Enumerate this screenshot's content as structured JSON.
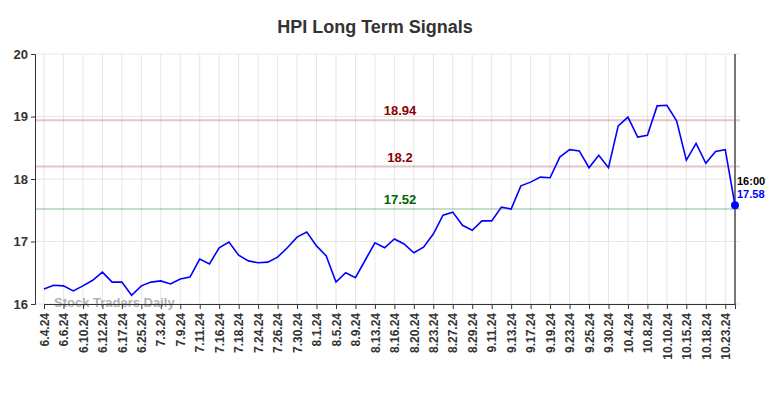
{
  "chart_data": {
    "type": "line",
    "title": "HPI Long Term Signals",
    "watermark": "Stock Traders Daily",
    "categories": [
      "6.4.24",
      null,
      "6.6.24",
      null,
      "6.10.24",
      null,
      "6.12.24",
      null,
      "6.17.24",
      null,
      "6.25.24",
      null,
      "7.3.24",
      null,
      "7.9.24",
      null,
      "7.11.24",
      null,
      "7.16.24",
      null,
      "7.18.24",
      null,
      "7.24.24",
      null,
      "7.26.24",
      null,
      "7.30.24",
      null,
      "8.1.24",
      null,
      "8.5.24",
      null,
      "8.9.24",
      null,
      "8.13.24",
      null,
      "8.16.24",
      null,
      "8.20.24",
      null,
      "8.23.24",
      null,
      "8.27.24",
      null,
      "8.29.24",
      null,
      "9.11.24",
      null,
      "9.13.24",
      null,
      "9.17.24",
      null,
      "9.19.24",
      null,
      "9.23.24",
      null,
      "9.25.24",
      null,
      "9.30.24",
      null,
      "10.4.24",
      null,
      "10.8.24",
      null,
      "10.10.24",
      null,
      "10.15.24",
      null,
      "10.18.24",
      null,
      "10.23.24",
      null
    ],
    "values": [
      16.24,
      16.3,
      16.29,
      16.21,
      16.29,
      16.38,
      16.51,
      16.35,
      16.35,
      16.14,
      16.29,
      16.35,
      16.37,
      16.32,
      16.4,
      16.43,
      16.72,
      16.64,
      16.9,
      16.99,
      16.78,
      16.69,
      16.66,
      16.67,
      16.75,
      16.9,
      17.07,
      17.15,
      16.93,
      16.77,
      16.35,
      16.5,
      16.42,
      16.7,
      16.98,
      16.9,
      17.04,
      16.96,
      16.82,
      16.91,
      17.12,
      17.42,
      17.47,
      17.26,
      17.18,
      17.33,
      17.33,
      17.55,
      17.52,
      17.89,
      17.95,
      18.03,
      18.02,
      18.35,
      18.47,
      18.45,
      18.18,
      18.38,
      18.18,
      18.85,
      18.99,
      18.67,
      18.7,
      19.17,
      19.18,
      18.93,
      18.3,
      18.57,
      18.25,
      18.44,
      18.47,
      17.58
    ],
    "color": "#0000ff",
    "ylim": [
      16,
      20
    ],
    "yticks": [
      16,
      17,
      18,
      19,
      20
    ],
    "grid": true,
    "reference_lines": [
      {
        "value": 18.94,
        "color": "#8b0000"
      },
      {
        "value": 18.2,
        "color": "#8b0000"
      },
      {
        "value": 17.52,
        "color": "#006400"
      }
    ],
    "last_point_time": "16:00"
  }
}
